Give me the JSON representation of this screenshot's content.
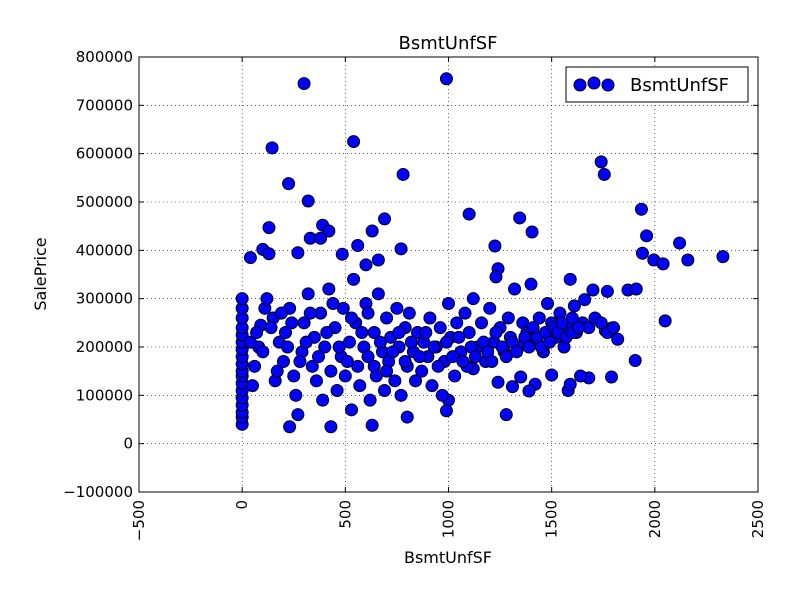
{
  "chart_data": {
    "type": "scatter",
    "title": "BsmtUnfSF",
    "xlabel": "BsmtUnfSF",
    "ylabel": "SalePrice",
    "xlim": [
      -500,
      2500
    ],
    "ylim": [
      -100000,
      800000
    ],
    "xticks": [
      -500,
      0,
      500,
      1000,
      1500,
      2000,
      2500
    ],
    "yticks": [
      -100000,
      0,
      100000,
      200000,
      300000,
      400000,
      500000,
      600000,
      700000,
      800000
    ],
    "xtick_labels": [
      "−500",
      "0",
      "500",
      "1000",
      "1500",
      "2000",
      "2500"
    ],
    "ytick_labels": [
      "−100000",
      "0",
      "100000",
      "200000",
      "300000",
      "400000",
      "500000",
      "600000",
      "700000",
      "800000"
    ],
    "grid": true,
    "legend_placement": "top-right",
    "series": [
      {
        "name": "BsmtUnfSF",
        "color": "#0000ff",
        "points": [
          [
            300,
            745000
          ],
          [
            990,
            755000
          ],
          [
            145,
            612000
          ],
          [
            540,
            625000
          ],
          [
            225,
            538000
          ],
          [
            320,
            502000
          ],
          [
            1740,
            583000
          ],
          [
            1755,
            557000
          ],
          [
            780,
            557000
          ],
          [
            1100,
            475000
          ],
          [
            1935,
            485000
          ],
          [
            690,
            465000
          ],
          [
            1345,
            467000
          ],
          [
            130,
            447000
          ],
          [
            1405,
            438000
          ],
          [
            390,
            452000
          ],
          [
            420,
            440000
          ],
          [
            330,
            425000
          ],
          [
            630,
            440000
          ],
          [
            1225,
            409000
          ],
          [
            1960,
            430000
          ],
          [
            2120,
            415000
          ],
          [
            1940,
            394000
          ],
          [
            1995,
            380000
          ],
          [
            2040,
            372000
          ],
          [
            2160,
            380000
          ],
          [
            2330,
            387000
          ],
          [
            40,
            385000
          ],
          [
            100,
            402000
          ],
          [
            130,
            393000
          ],
          [
            270,
            395000
          ],
          [
            380,
            425000
          ],
          [
            485,
            392000
          ],
          [
            560,
            410000
          ],
          [
            600,
            370000
          ],
          [
            660,
            380000
          ],
          [
            770,
            403000
          ],
          [
            1240,
            362000
          ],
          [
            1230,
            345000
          ],
          [
            1590,
            340000
          ],
          [
            1870,
            318000
          ],
          [
            1910,
            320000
          ],
          [
            2050,
            254000
          ],
          [
            1905,
            172000
          ],
          [
            1610,
            285000
          ],
          [
            1660,
            298000
          ],
          [
            1700,
            318000
          ],
          [
            1770,
            315000
          ],
          [
            1820,
            216000
          ],
          [
            1790,
            239000
          ],
          [
            1760,
            234000
          ],
          [
            1790,
            138000
          ],
          [
            1680,
            136000
          ],
          [
            1640,
            140000
          ],
          [
            1580,
            110000
          ],
          [
            1590,
            123000
          ],
          [
            1500,
            142000
          ],
          [
            1420,
            123000
          ],
          [
            1390,
            109000
          ],
          [
            1350,
            138000
          ],
          [
            1310,
            118000
          ],
          [
            1280,
            60000
          ],
          [
            1240,
            127000
          ],
          [
            1120,
            155000
          ],
          [
            1000,
            90000
          ],
          [
            970,
            100000
          ],
          [
            990,
            68000
          ],
          [
            800,
            55000
          ],
          [
            630,
            38000
          ],
          [
            430,
            35000
          ],
          [
            230,
            35000
          ],
          [
            0,
            40000
          ],
          [
            0,
            55000
          ],
          [
            0,
            65000
          ],
          [
            0,
            80000
          ],
          [
            0,
            95000
          ],
          [
            0,
            110000
          ],
          [
            0,
            125000
          ],
          [
            0,
            140000
          ],
          [
            0,
            150000
          ],
          [
            0,
            165000
          ],
          [
            0,
            180000
          ],
          [
            0,
            195000
          ],
          [
            0,
            210000
          ],
          [
            0,
            225000
          ],
          [
            0,
            240000
          ],
          [
            0,
            260000
          ],
          [
            0,
            280000
          ],
          [
            0,
            300000
          ],
          [
            50,
            120000
          ],
          [
            60,
            160000
          ],
          [
            80,
            200000
          ],
          [
            90,
            245000
          ],
          [
            110,
            280000
          ],
          [
            120,
            300000
          ],
          [
            150,
            260000
          ],
          [
            160,
            130000
          ],
          [
            180,
            210000
          ],
          [
            200,
            170000
          ],
          [
            210,
            230000
          ],
          [
            230,
            280000
          ],
          [
            250,
            140000
          ],
          [
            260,
            100000
          ],
          [
            270,
            60000
          ],
          [
            290,
            190000
          ],
          [
            300,
            250000
          ],
          [
            320,
            310000
          ],
          [
            340,
            160000
          ],
          [
            350,
            220000
          ],
          [
            360,
            130000
          ],
          [
            380,
            270000
          ],
          [
            390,
            90000
          ],
          [
            400,
            200000
          ],
          [
            420,
            320000
          ],
          [
            430,
            150000
          ],
          [
            450,
            240000
          ],
          [
            460,
            110000
          ],
          [
            480,
            180000
          ],
          [
            490,
            280000
          ],
          [
            500,
            140000
          ],
          [
            520,
            210000
          ],
          [
            530,
            70000
          ],
          [
            540,
            340000
          ],
          [
            550,
            250000
          ],
          [
            560,
            160000
          ],
          [
            570,
            120000
          ],
          [
            590,
            200000
          ],
          [
            600,
            290000
          ],
          [
            610,
            180000
          ],
          [
            620,
            90000
          ],
          [
            640,
            230000
          ],
          [
            650,
            140000
          ],
          [
            660,
            310000
          ],
          [
            680,
            190000
          ],
          [
            690,
            110000
          ],
          [
            700,
            260000
          ],
          [
            710,
            170000
          ],
          [
            720,
            220000
          ],
          [
            740,
            130000
          ],
          [
            750,
            280000
          ],
          [
            760,
            200000
          ],
          [
            770,
            100000
          ],
          [
            790,
            240000
          ],
          [
            800,
            160000
          ],
          [
            810,
            270000
          ],
          [
            830,
            190000
          ],
          [
            840,
            130000
          ],
          [
            850,
            230000
          ],
          [
            870,
            150000
          ],
          [
            880,
            210000
          ],
          [
            900,
            180000
          ],
          [
            910,
            260000
          ],
          [
            920,
            120000
          ],
          [
            940,
            200000
          ],
          [
            960,
            240000
          ],
          [
            980,
            170000
          ],
          [
            1000,
            290000
          ],
          [
            1010,
            220000
          ],
          [
            1030,
            140000
          ],
          [
            1040,
            250000
          ],
          [
            1060,
            190000
          ],
          [
            1080,
            270000
          ],
          [
            1090,
            160000
          ],
          [
            1100,
            230000
          ],
          [
            1120,
            300000
          ],
          [
            1140,
            200000
          ],
          [
            1160,
            250000
          ],
          [
            1180,
            170000
          ],
          [
            1200,
            280000
          ],
          [
            1220,
            210000
          ],
          [
            1250,
            240000
          ],
          [
            1270,
            190000
          ],
          [
            1290,
            260000
          ],
          [
            1300,
            220000
          ],
          [
            1320,
            320000
          ],
          [
            1340,
            200000
          ],
          [
            1360,
            250000
          ],
          [
            1380,
            230000
          ],
          [
            1400,
            330000
          ],
          [
            1420,
            210000
          ],
          [
            1440,
            260000
          ],
          [
            1460,
            190000
          ],
          [
            1480,
            290000
          ],
          [
            1500,
            250000
          ],
          [
            1520,
            220000
          ],
          [
            1540,
            270000
          ],
          [
            1560,
            200000
          ],
          [
            1580,
            240000
          ],
          [
            1600,
            260000
          ],
          [
            1620,
            230000
          ],
          [
            1650,
            250000
          ],
          [
            1680,
            240000
          ],
          [
            1710,
            260000
          ],
          [
            1740,
            250000
          ],
          [
            1770,
            230000
          ],
          [
            1800,
            240000
          ],
          [
            40,
            210000
          ],
          [
            70,
            230000
          ],
          [
            100,
            190000
          ],
          [
            140,
            240000
          ],
          [
            170,
            150000
          ],
          [
            190,
            270000
          ],
          [
            220,
            200000
          ],
          [
            240,
            250000
          ],
          [
            280,
            170000
          ],
          [
            310,
            210000
          ],
          [
            330,
            270000
          ],
          [
            370,
            180000
          ],
          [
            410,
            230000
          ],
          [
            440,
            290000
          ],
          [
            470,
            200000
          ],
          [
            510,
            170000
          ],
          [
            530,
            260000
          ],
          [
            580,
            230000
          ],
          [
            610,
            270000
          ],
          [
            640,
            160000
          ],
          [
            670,
            210000
          ],
          [
            700,
            150000
          ],
          [
            730,
            190000
          ],
          [
            760,
            230000
          ],
          [
            790,
            170000
          ],
          [
            820,
            210000
          ],
          [
            860,
            180000
          ],
          [
            890,
            230000
          ],
          [
            930,
            200000
          ],
          [
            950,
            160000
          ],
          [
            990,
            210000
          ],
          [
            1020,
            180000
          ],
          [
            1050,
            220000
          ],
          [
            1070,
            170000
          ],
          [
            1110,
            200000
          ],
          [
            1130,
            180000
          ],
          [
            1170,
            210000
          ],
          [
            1190,
            190000
          ],
          [
            1210,
            170000
          ],
          [
            1230,
            230000
          ],
          [
            1260,
            200000
          ],
          [
            1280,
            180000
          ],
          [
            1310,
            210000
          ],
          [
            1330,
            190000
          ],
          [
            1370,
            220000
          ],
          [
            1390,
            200000
          ],
          [
            1410,
            240000
          ],
          [
            1430,
            220000
          ],
          [
            1450,
            200000
          ],
          [
            1470,
            230000
          ],
          [
            1490,
            210000
          ],
          [
            1510,
            240000
          ],
          [
            1530,
            230000
          ],
          [
            1550,
            250000
          ],
          [
            1570,
            220000
          ],
          [
            1600,
            230000
          ],
          [
            1630,
            240000
          ]
        ]
      }
    ]
  }
}
